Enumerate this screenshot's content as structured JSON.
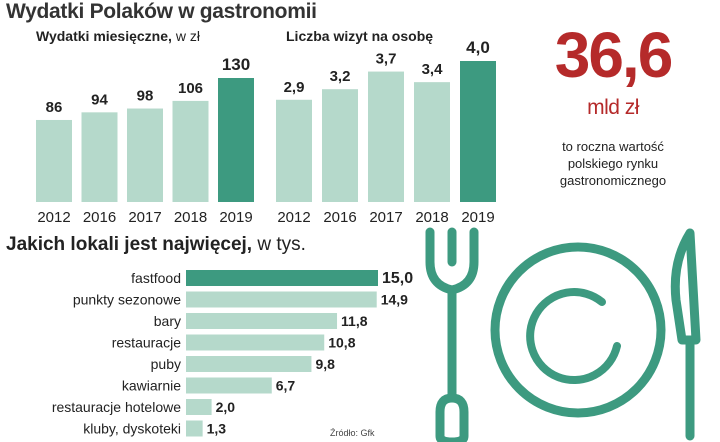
{
  "title": "Wydatki Polaków w gastronomii",
  "chart_data": [
    {
      "type": "bar",
      "title": "Wydatki miesięczne,",
      "unit": "w zł",
      "categories": [
        "2012",
        "2016",
        "2017",
        "2018",
        "2019"
      ],
      "values": [
        86,
        94,
        98,
        106,
        130
      ],
      "value_labels": [
        "86",
        "94",
        "98",
        "106",
        "130"
      ],
      "highlight_index": 4
    },
    {
      "type": "bar",
      "title": "Liczba wizyt na osobę",
      "categories": [
        "2012",
        "2016",
        "2017",
        "2018",
        "2019"
      ],
      "values": [
        2.9,
        3.2,
        3.7,
        3.4,
        4.0
      ],
      "value_labels": [
        "2,9",
        "3,2",
        "3,7",
        "3,4",
        "4,0"
      ],
      "highlight_index": 4
    },
    {
      "type": "bar",
      "orientation": "horizontal",
      "title": "Jakich lokali jest najwięcej,",
      "unit": "w tys.",
      "categories": [
        "fastfood",
        "punkty sezonowe",
        "bary",
        "restauracje",
        "puby",
        "kawiarnie",
        "restauracje hotelowe",
        "kluby, dyskoteki"
      ],
      "values": [
        15.0,
        14.9,
        11.8,
        10.8,
        9.8,
        6.7,
        2.0,
        1.3
      ],
      "value_labels": [
        "15,0",
        "14,9",
        "11,8",
        "10,8",
        "9,8",
        "6,7",
        "2,0",
        "1,3"
      ],
      "highlight_index": 0
    }
  ],
  "stat": {
    "value": "36,6",
    "unit": "mld zł",
    "description_lines": [
      "to roczna wartość",
      "polskiego rynku",
      "gastronomicznego"
    ]
  },
  "source": "Źródło: Gfk",
  "colors": {
    "bar": "#b5d9cb",
    "highlight": "#3d9a80",
    "accent": "#b52a2a",
    "icon": "#3d9a80"
  },
  "icons": [
    "fork-icon",
    "plate-icon",
    "knife-icon"
  ]
}
